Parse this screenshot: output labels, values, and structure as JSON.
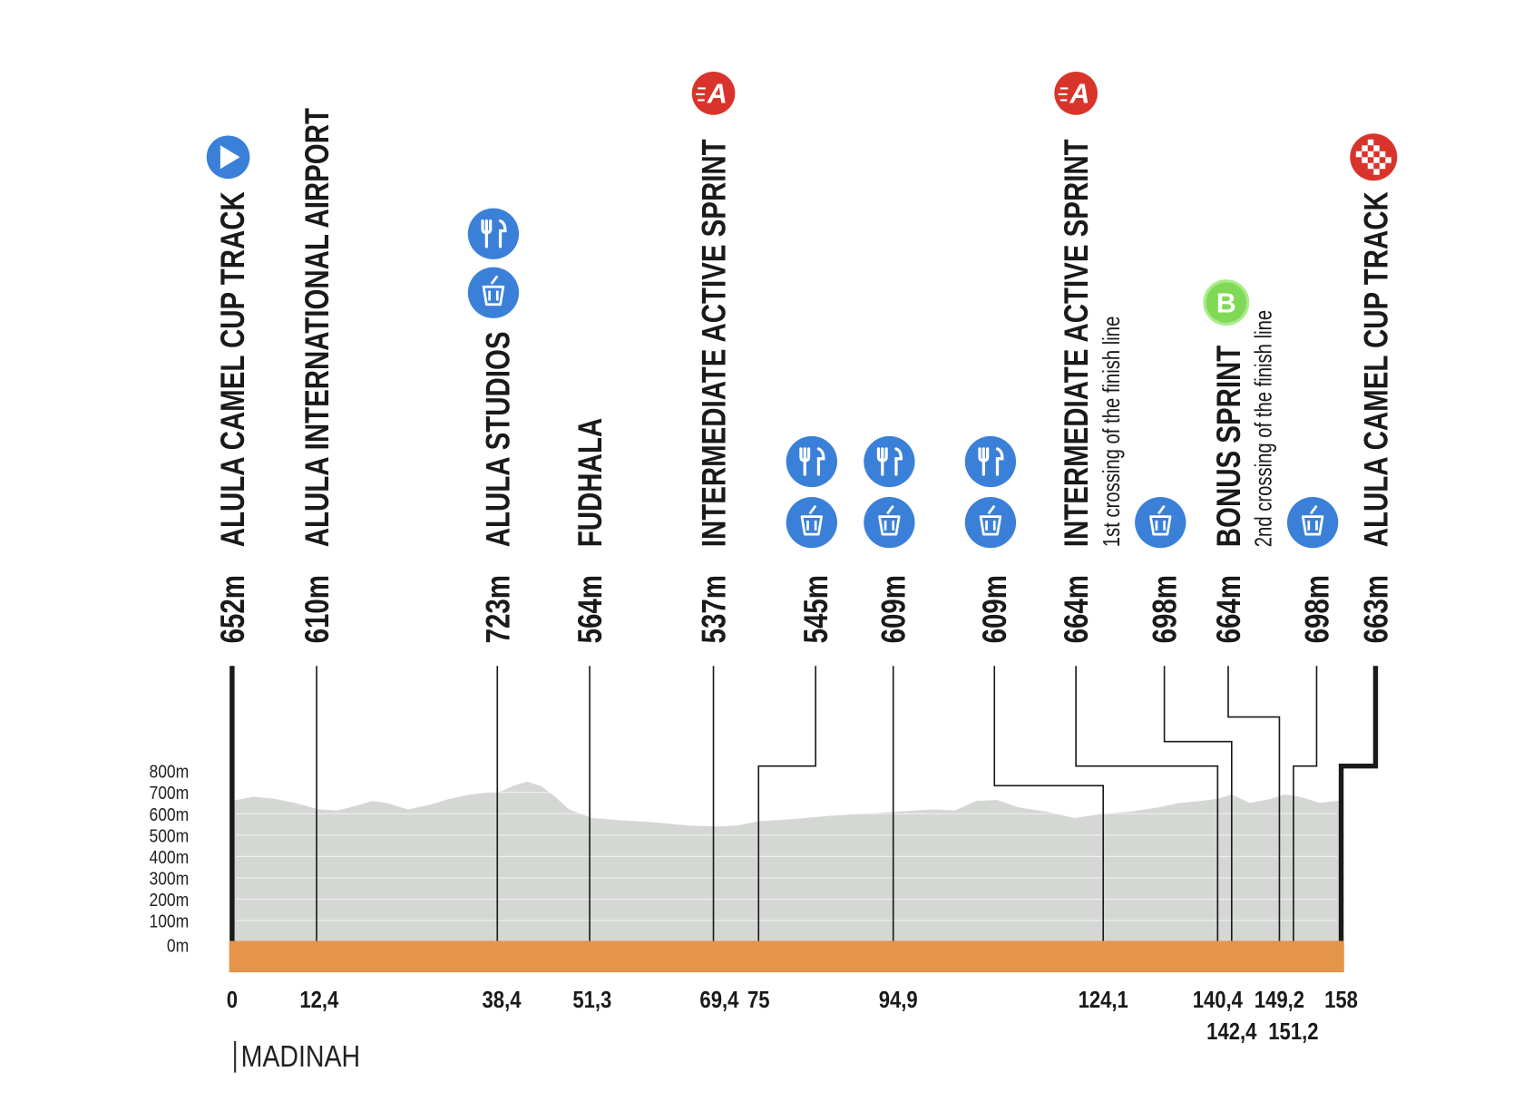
{
  "chart_data": {
    "type": "profile",
    "xlim": [
      0,
      158
    ],
    "ylim": [
      0,
      800
    ],
    "yticks": [
      {
        "value": 0,
        "label": "0m"
      },
      {
        "value": 100,
        "label": "100m"
      },
      {
        "value": 200,
        "label": "200m"
      },
      {
        "value": 300,
        "label": "300m"
      },
      {
        "value": 400,
        "label": "400m"
      },
      {
        "value": 500,
        "label": "500m"
      },
      {
        "value": 600,
        "label": "600m"
      },
      {
        "value": 700,
        "label": "700m"
      },
      {
        "value": 800,
        "label": "800m"
      }
    ],
    "x": [
      0,
      3,
      6,
      9,
      12.4,
      15,
      18,
      20,
      22,
      25,
      28,
      31,
      34,
      36.5,
      38.4,
      40,
      42,
      44,
      46,
      48,
      51.3,
      55,
      60,
      65,
      69.4,
      72,
      75,
      80,
      85,
      90,
      94.9,
      100,
      103,
      106,
      109,
      112,
      116,
      120,
      124.1,
      128,
      132,
      135,
      138,
      140.4,
      142.4,
      145,
      148,
      150,
      152,
      155,
      158
    ],
    "values": [
      660,
      680,
      670,
      650,
      620,
      615,
      640,
      660,
      650,
      620,
      640,
      670,
      690,
      700,
      705,
      730,
      750,
      730,
      680,
      620,
      580,
      570,
      560,
      545,
      540,
      545,
      565,
      575,
      590,
      600,
      610,
      620,
      615,
      660,
      665,
      630,
      610,
      580,
      600,
      610,
      630,
      650,
      660,
      670,
      690,
      650,
      670,
      690,
      680,
      650,
      663
    ],
    "points": [
      {
        "name": "ALULA CAMEL CUP TRACK",
        "altitude": "652m",
        "km": 0,
        "start": true
      },
      {
        "name": "ALULA INTERNATIONAL AIRPORT",
        "altitude": "610m",
        "km": {
          "value": 12.4,
          "label": "12,4"
        }
      },
      {
        "name": "ALULA STUDIOS",
        "altitude": "723m",
        "km": {
          "value": 38.4,
          "label": "38,4"
        },
        "feed_zone": true,
        "waste_zone": true
      },
      {
        "name": "FUDHALA",
        "altitude": "564m",
        "km": {
          "value": 51.3,
          "label": "51,3"
        }
      },
      {
        "name": "INTERMEDIATE ACTIVE SPRINT",
        "altitude": "537m",
        "km": {
          "value": 69.4,
          "label": "69,4"
        },
        "badge": "A"
      },
      {
        "altitude": "545m",
        "km": 75,
        "feed_zone": true,
        "waste_zone": true
      },
      {
        "altitude": "609m",
        "km": {
          "value": 94.9,
          "label": "94,9"
        },
        "feed_zone": true,
        "waste_zone": true
      },
      {
        "altitude": "609m",
        "km": {
          "value": 124.1,
          "label": "124,1"
        },
        "feed_zone": true,
        "waste_zone": true
      },
      {
        "name": "INTERMEDIATE ACTIVE SPRINT",
        "note": "1st crossing of the finish line",
        "altitude": "664m",
        "km": {
          "value": 140.4,
          "label": "140,4"
        },
        "badge": "A"
      },
      {
        "altitude": "698m",
        "km": {
          "value": 142.4,
          "label": "142,4"
        },
        "waste_zone": true
      },
      {
        "name": "BONUS SPRINT",
        "note": "2nd crossing of the finish line",
        "altitude": "664m",
        "km": {
          "value": 149.2,
          "label": "149,2"
        },
        "badge": "B"
      },
      {
        "altitude": "698m",
        "km": {
          "value": 151.2,
          "label": "151,2"
        },
        "waste_zone": true
      },
      {
        "name": "ALULA CAMEL CUP TRACK",
        "altitude": "663m",
        "km": 158,
        "finish": true
      }
    ],
    "footer": "MADINAH"
  }
}
